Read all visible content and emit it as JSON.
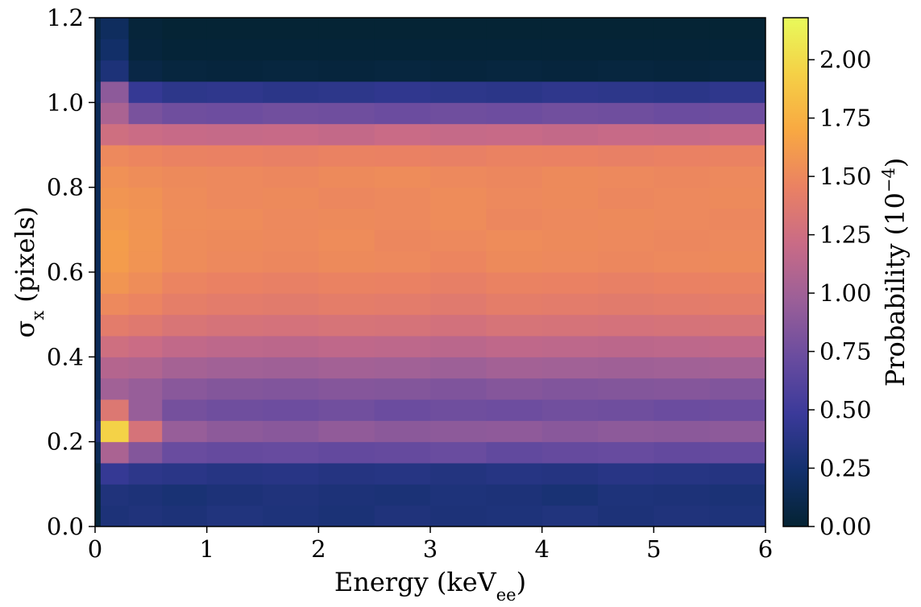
{
  "chart_data": {
    "type": "heatmap",
    "xlabel": [
      {
        "text": "Energy (keV"
      },
      {
        "text": "ee",
        "sub": true
      },
      {
        "text": ")"
      }
    ],
    "ylabel": [
      {
        "text": "σ"
      },
      {
        "text": "x",
        "sub": true
      },
      {
        "text": " (pixels)"
      }
    ],
    "colorbar_label": [
      {
        "text": "Probability (10"
      },
      {
        "text": "−4",
        "sup": true
      },
      {
        "text": ")"
      }
    ],
    "xbins": [
      0,
      0.05,
      0.3,
      0.6,
      1,
      1.5,
      2,
      2.5,
      3,
      3.5,
      4,
      4.5,
      5,
      5.5,
      6
    ],
    "ybins": [
      0,
      0.05,
      0.1,
      0.15,
      0.2,
      0.25,
      0.3,
      0.35,
      0.4,
      0.45,
      0.5,
      0.55,
      0.6,
      0.65,
      0.7,
      0.75,
      0.8,
      0.85,
      0.9,
      0.95,
      1.0,
      1.05,
      1.1,
      1.15,
      1.2
    ],
    "xlim": [
      0,
      6
    ],
    "ylim": [
      0,
      1.2
    ],
    "xticks": [
      0,
      1,
      2,
      3,
      4,
      5,
      6
    ],
    "yticks": [
      {
        "value": 0,
        "label": "0.0"
      },
      {
        "value": 0.2,
        "label": "0.2"
      },
      {
        "value": 0.4,
        "label": "0.4"
      },
      {
        "value": 0.6,
        "label": "0.6"
      },
      {
        "value": 0.8,
        "label": "0.8"
      },
      {
        "value": 1.0,
        "label": "1.0"
      },
      {
        "value": 1.2,
        "label": "1.2"
      }
    ],
    "clim": [
      0,
      2.18
    ],
    "cticks": [
      {
        "value": 0,
        "label": "0.00"
      },
      {
        "value": 0.25,
        "label": "0.25"
      },
      {
        "value": 0.5,
        "label": "0.50"
      },
      {
        "value": 0.75,
        "label": "0.75"
      },
      {
        "value": 1.0,
        "label": "1.00"
      },
      {
        "value": 1.25,
        "label": "1.25"
      },
      {
        "value": 1.5,
        "label": "1.50"
      },
      {
        "value": 1.75,
        "label": "1.75"
      },
      {
        "value": 2.0,
        "label": "2.00"
      }
    ],
    "colormap": [
      "#042333",
      "#13306d",
      "#3b3a9a",
      "#6a4c9f",
      "#9b5f98",
      "#c96b86",
      "#ea8163",
      "#f8a842",
      "#f5d046",
      "#e8fa5b"
    ],
    "values": [
      [
        0.05,
        0.3,
        0.32,
        0.3,
        0.33,
        0.31,
        0.29,
        0.32,
        0.3,
        0.31,
        0.33,
        0.3,
        0.32,
        0.31
      ],
      [
        0.06,
        0.32,
        0.3,
        0.28,
        0.3,
        0.32,
        0.3,
        0.29,
        0.31,
        0.3,
        0.28,
        0.31,
        0.3,
        0.29
      ],
      [
        0.08,
        0.45,
        0.4,
        0.38,
        0.36,
        0.37,
        0.35,
        0.36,
        0.34,
        0.36,
        0.35,
        0.37,
        0.36,
        0.35
      ],
      [
        0.15,
        1.05,
        0.85,
        0.72,
        0.7,
        0.71,
        0.69,
        0.7,
        0.72,
        0.68,
        0.7,
        0.71,
        0.69,
        0.7
      ],
      [
        0.3,
        1.95,
        1.3,
        0.95,
        0.9,
        0.88,
        0.92,
        0.89,
        0.9,
        0.91,
        0.88,
        0.9,
        0.89,
        0.9
      ],
      [
        0.2,
        1.35,
        0.95,
        0.78,
        0.75,
        0.74,
        0.76,
        0.73,
        0.75,
        0.74,
        0.76,
        0.75,
        0.73,
        0.74
      ],
      [
        0.15,
        1.0,
        0.95,
        0.88,
        0.85,
        0.84,
        0.86,
        0.85,
        0.83,
        0.86,
        0.84,
        0.85,
        0.86,
        0.84
      ],
      [
        0.15,
        1.1,
        1.08,
        1.02,
        1.0,
        0.99,
        1.01,
        1.0,
        0.98,
        1.01,
        1.0,
        0.99,
        1.0,
        1.01
      ],
      [
        0.15,
        1.25,
        1.22,
        1.17,
        1.15,
        1.14,
        1.16,
        1.15,
        1.13,
        1.16,
        1.15,
        1.14,
        1.15,
        1.16
      ],
      [
        0.15,
        1.4,
        1.37,
        1.32,
        1.3,
        1.29,
        1.31,
        1.3,
        1.28,
        1.31,
        1.3,
        1.29,
        1.3,
        1.31
      ],
      [
        0.15,
        1.5,
        1.47,
        1.42,
        1.4,
        1.39,
        1.41,
        1.4,
        1.38,
        1.41,
        1.4,
        1.39,
        1.4,
        1.41
      ],
      [
        0.15,
        1.58,
        1.53,
        1.47,
        1.45,
        1.44,
        1.46,
        1.45,
        1.43,
        1.46,
        1.45,
        1.44,
        1.45,
        1.46
      ],
      [
        0.15,
        1.62,
        1.57,
        1.52,
        1.5,
        1.49,
        1.51,
        1.5,
        1.48,
        1.51,
        1.5,
        1.49,
        1.5,
        1.51
      ],
      [
        0.15,
        1.63,
        1.58,
        1.52,
        1.51,
        1.5,
        1.52,
        1.49,
        1.5,
        1.52,
        1.51,
        1.5,
        1.49,
        1.5
      ],
      [
        0.15,
        1.6,
        1.57,
        1.53,
        1.52,
        1.5,
        1.51,
        1.5,
        1.52,
        1.49,
        1.5,
        1.51,
        1.5,
        1.49
      ],
      [
        0.15,
        1.58,
        1.56,
        1.52,
        1.5,
        1.51,
        1.49,
        1.5,
        1.52,
        1.5,
        1.51,
        1.49,
        1.5,
        1.51
      ],
      [
        0.15,
        1.55,
        1.53,
        1.51,
        1.5,
        1.49,
        1.51,
        1.52,
        1.5,
        1.49,
        1.51,
        1.5,
        1.49,
        1.5
      ],
      [
        0.15,
        1.5,
        1.48,
        1.46,
        1.45,
        1.44,
        1.46,
        1.45,
        1.44,
        1.46,
        1.45,
        1.44,
        1.45,
        1.46
      ],
      [
        0.15,
        1.25,
        1.22,
        1.2,
        1.19,
        1.2,
        1.18,
        1.21,
        1.19,
        1.2,
        1.18,
        1.2,
        1.19,
        1.21
      ],
      [
        0.15,
        1.05,
        0.8,
        0.75,
        0.74,
        0.76,
        0.75,
        0.73,
        0.75,
        0.74,
        0.76,
        0.75,
        0.73,
        0.74
      ],
      [
        0.2,
        0.9,
        0.45,
        0.4,
        0.41,
        0.39,
        0.4,
        0.42,
        0.4,
        0.39,
        0.41,
        0.4,
        0.39,
        0.41
      ],
      [
        0.15,
        0.3,
        0.08,
        0.05,
        0.04,
        0.05,
        0.04,
        0.05,
        0.04,
        0.05,
        0.04,
        0.05,
        0.04,
        0.05
      ],
      [
        0.1,
        0.22,
        0.04,
        0.02,
        0.02,
        0.02,
        0.02,
        0.02,
        0.02,
        0.02,
        0.02,
        0.02,
        0.02,
        0.02
      ],
      [
        0.08,
        0.18,
        0.03,
        0.01,
        0.01,
        0.01,
        0.01,
        0.01,
        0.01,
        0.01,
        0.01,
        0.01,
        0.01,
        0.01
      ]
    ]
  }
}
